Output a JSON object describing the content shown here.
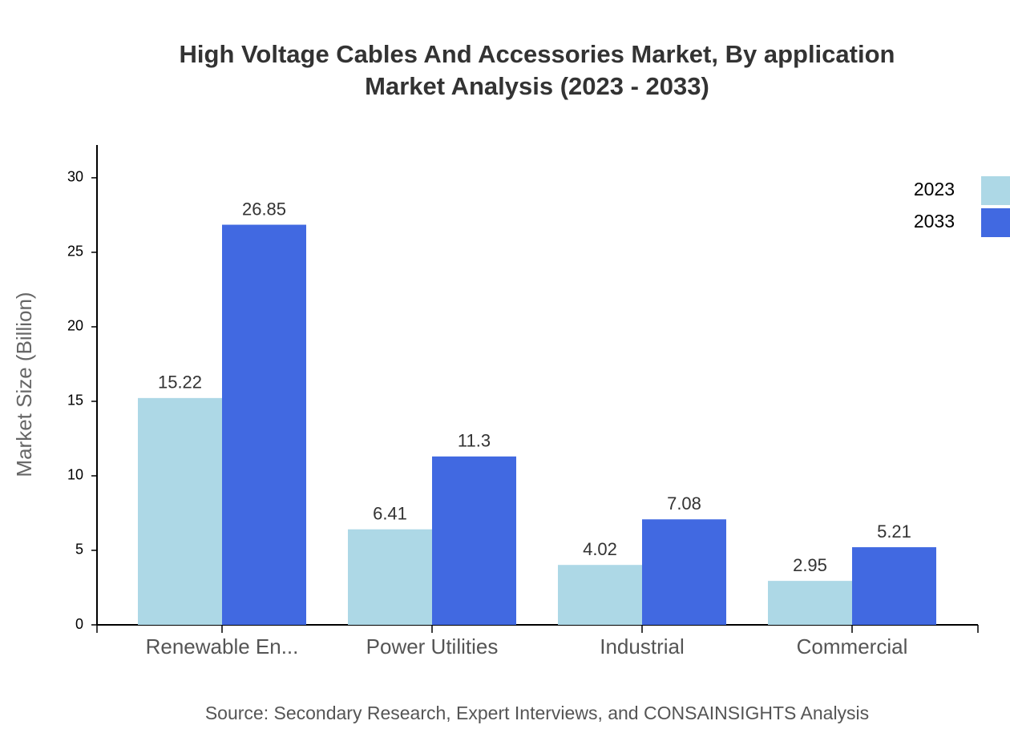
{
  "chart_data": {
    "type": "bar",
    "title": "High Voltage Cables And Accessories Market, By application",
    "subtitle": "Market Analysis (2023 - 2033)",
    "y_label": "Market Size (Billion)",
    "source": "Source: Secondary Research, Expert Interviews, and CONSAINSIGHTS Analysis",
    "categories": [
      "Renewable En...",
      "Power Utilities",
      "Industrial",
      "Commercial"
    ],
    "series": [
      {
        "name": "2023",
        "color": "#add8e6",
        "values": [
          15.22,
          6.41,
          4.02,
          2.95
        ]
      },
      {
        "name": "2033",
        "color": "#4169e1",
        "values": [
          26.85,
          11.3,
          7.08,
          5.21
        ]
      }
    ],
    "ylim": [
      0,
      32.2
    ],
    "yticks": [
      0,
      5,
      10,
      15,
      20,
      25,
      30
    ],
    "legend": "top-right"
  }
}
